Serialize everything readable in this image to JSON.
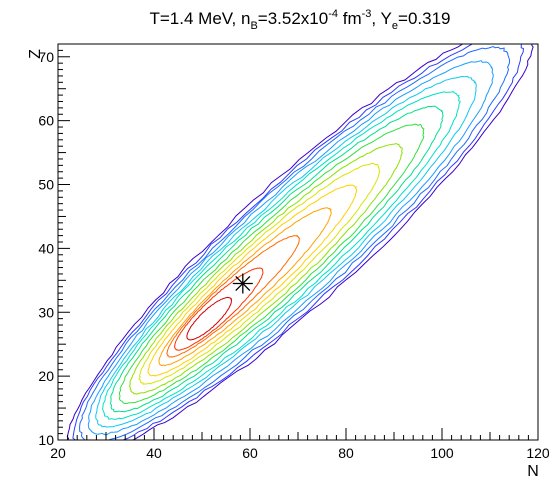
{
  "chart_data": {
    "type": "contour",
    "title": {
      "parts": [
        {
          "t": "T=1.4 MeV,   n"
        },
        {
          "t": "B",
          "sub": true
        },
        {
          "t": "=3.52x10"
        },
        {
          "t": "-4",
          "sup": true
        },
        {
          "t": " fm"
        },
        {
          "t": "-3",
          "sup": true
        },
        {
          "t": ",   Y"
        },
        {
          "t": "e",
          "sub": true
        },
        {
          "t": "=0.319"
        }
      ]
    },
    "xlabel": "N",
    "ylabel": "Z",
    "xlim": [
      20,
      120
    ],
    "ylim": [
      10,
      72
    ],
    "xticks": [
      20,
      40,
      60,
      80,
      100,
      120
    ],
    "yticks": [
      10,
      20,
      30,
      40,
      50,
      60,
      70
    ],
    "marker": {
      "shape": "asterisk",
      "x": 58.5,
      "y": 34.5
    },
    "contour_colors": [
      "#3b00cc",
      "#2a3cff",
      "#1f6bff",
      "#1a9bff",
      "#10c8f0",
      "#00e0c8",
      "#00e08c",
      "#30e040",
      "#8ee000",
      "#d8e400",
      "#ffd000",
      "#ffa000",
      "#ff6a00",
      "#ff3300",
      "#d00000"
    ],
    "contours": [
      {
        "center": [
          70.5,
          41.3
        ],
        "a": 58.0,
        "b": 10.6,
        "angle": 34
      },
      {
        "center": [
          70.0,
          41.0
        ],
        "a": 56.0,
        "b": 10.0,
        "angle": 34
      },
      {
        "center": [
          69.3,
          40.6
        ],
        "a": 53.5,
        "b": 9.4,
        "angle": 34
      },
      {
        "center": [
          68.5,
          40.1
        ],
        "a": 50.5,
        "b": 8.8,
        "angle": 34
      },
      {
        "center": [
          67.5,
          39.5
        ],
        "a": 47.5,
        "b": 8.1,
        "angle": 34
      },
      {
        "center": [
          66.5,
          38.9
        ],
        "a": 44.5,
        "b": 7.5,
        "angle": 34
      },
      {
        "center": [
          65.5,
          38.3
        ],
        "a": 41.5,
        "b": 6.8,
        "angle": 34
      },
      {
        "center": [
          64.5,
          37.6
        ],
        "a": 38.0,
        "b": 6.1,
        "angle": 34
      },
      {
        "center": [
          63.3,
          36.8
        ],
        "a": 34.0,
        "b": 5.4,
        "angle": 34
      },
      {
        "center": [
          62.0,
          36.0
        ],
        "a": 30.0,
        "b": 4.7,
        "angle": 34
      },
      {
        "center": [
          60.5,
          35.0
        ],
        "a": 26.0,
        "b": 4.0,
        "angle": 34
      },
      {
        "center": [
          59.0,
          34.0
        ],
        "a": 21.5,
        "b": 3.3,
        "angle": 34
      },
      {
        "center": [
          56.5,
          32.5
        ],
        "a": 16.5,
        "b": 2.7,
        "angle": 34
      },
      {
        "center": [
          53.5,
          30.5
        ],
        "a": 11.0,
        "b": 2.2,
        "angle": 34
      },
      {
        "center": [
          51.5,
          29.0
        ],
        "a": 5.5,
        "b": 1.5,
        "angle": 34
      }
    ]
  }
}
